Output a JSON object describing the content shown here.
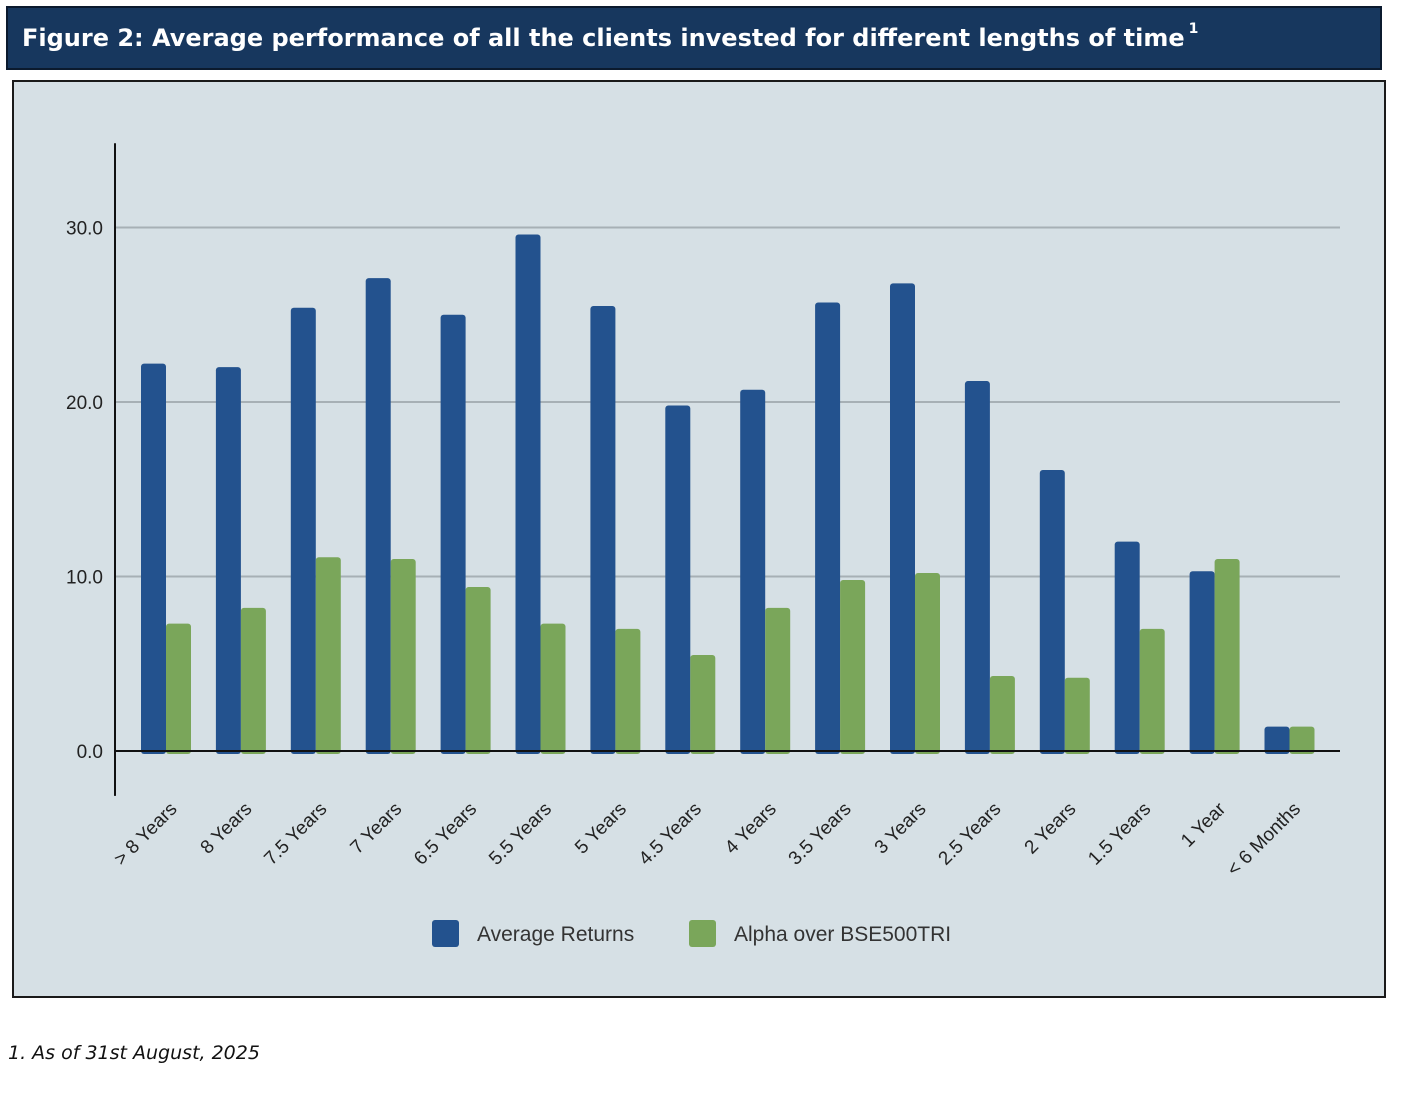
{
  "figure": {
    "title": "Figure 2:  Average performance of all the clients invested for different lengths of time",
    "title_superscript": "1"
  },
  "footnote": "1. As of 31st August, 2025",
  "chart_data": {
    "type": "bar",
    "title": "",
    "xlabel": "",
    "ylabel": "",
    "ylim": [
      -2,
      35
    ],
    "yticks": [
      0.0,
      10.0,
      20.0,
      30.0
    ],
    "ytick_labels": [
      "0.0",
      "10.0",
      "20.0",
      "30.0"
    ],
    "grid": true,
    "legend_position": "bottom-center",
    "categories": [
      "> 8 Years",
      "8 Years",
      "7.5 Years",
      "7 Years",
      "6.5 Years",
      "5.5 Years",
      "5 Years",
      "4.5 Years",
      "4 Years",
      "3.5 Years",
      "3 Years",
      "2.5 Years",
      "2 Years",
      "1.5 Years",
      "1 Year",
      "< 6 Months"
    ],
    "series": [
      {
        "name": "Average Returns",
        "color": "#23528e",
        "values": [
          22.2,
          22.0,
          25.4,
          27.1,
          25.0,
          29.6,
          25.5,
          19.8,
          20.7,
          25.7,
          26.8,
          21.2,
          16.1,
          12.0,
          10.3,
          1.4
        ]
      },
      {
        "name": "Alpha over BSE500TRI",
        "color": "#7aa65a",
        "values": [
          7.3,
          8.2,
          11.1,
          11.0,
          9.4,
          7.3,
          7.0,
          5.5,
          8.2,
          9.8,
          10.2,
          4.3,
          4.2,
          7.0,
          11.0,
          1.4
        ]
      }
    ]
  }
}
